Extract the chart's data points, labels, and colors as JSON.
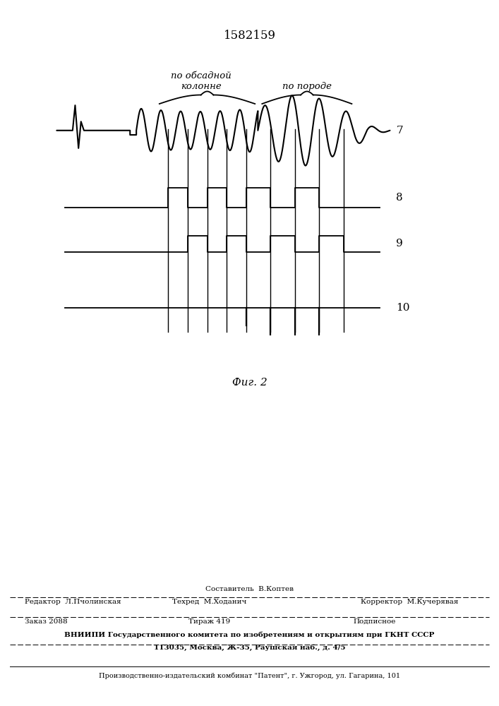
{
  "title": "1582159",
  "fig_label": "Фиг. 2",
  "label_casing": "по обсадной\nколонне",
  "label_rock": "по породе",
  "signal_labels": [
    "7",
    "8",
    "9",
    "10"
  ],
  "bg_color": "#ffffff",
  "line_color": "#000000",
  "footer_sestavitel": "Составитель  В.Коптев",
  "footer_redaktor": "Редактор  Л.Пчолинская",
  "footer_tehred": "Техред  М.Ходанич",
  "footer_korrektor": "Корректор  М.Кучерявая",
  "footer_zakaz": "Заказ 2088",
  "footer_tirazh": "Тираж 419",
  "footer_podpisnoe": "Подписное",
  "footer_vniip1": "ВНИИПИ Государственного комитета по изобретениям и открытиям при ГКНТ СССР",
  "footer_vniip2": "113035, Москва, Ж-35, Раушская наб., д. 4/5",
  "footer_patent": "Производственно-издательский комбинат \"Патент\", г. Ужгород, ул. Гагарина, 101"
}
